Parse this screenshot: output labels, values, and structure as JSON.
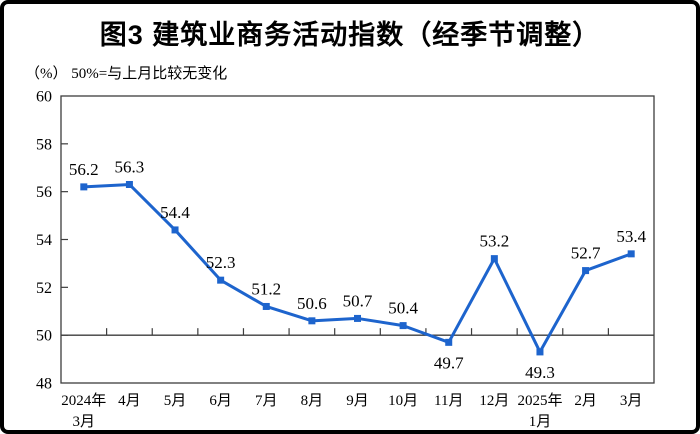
{
  "title": "图3  建筑业商务活动指数（经季节调整）",
  "subtitle": "（%）  50%=与上月比较无变化",
  "chart_data": {
    "type": "line",
    "title": "图3  建筑业商务活动指数（经季节调整）",
    "unit_note": "（%）  50%=与上月比较无变化",
    "categories": [
      "2024年|3月",
      "4月",
      "5月",
      "6月",
      "7月",
      "8月",
      "9月",
      "10月",
      "11月",
      "12月",
      "2025年|1月",
      "2月",
      "3月"
    ],
    "values": [
      56.2,
      56.3,
      54.4,
      52.3,
      51.2,
      50.6,
      50.7,
      50.4,
      49.7,
      53.2,
      49.3,
      52.7,
      53.4
    ],
    "labels_below_indices": [
      8,
      10
    ],
    "ylim": [
      48,
      60
    ],
    "ytick_step": 2,
    "reference_line": 50,
    "grid": false,
    "legend": "none",
    "colors": {
      "series": "#1d64cd",
      "axis": "#3d3d3d",
      "text": "#000000"
    }
  }
}
